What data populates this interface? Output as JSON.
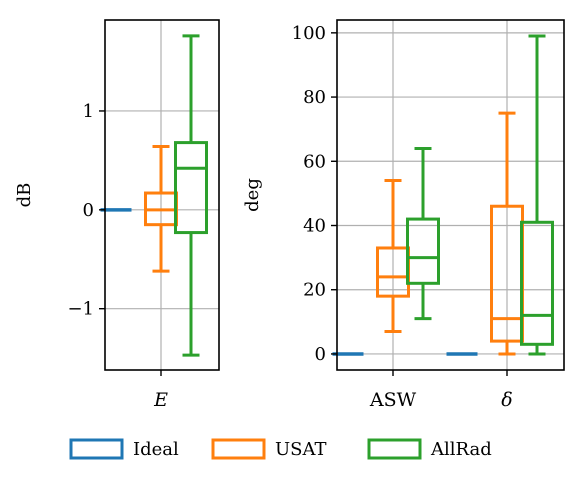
{
  "chart_data": [
    {
      "type": "box",
      "ylabel": "dB",
      "ylim": [
        -1.62,
        1.92
      ],
      "yticks": [
        -1,
        0,
        1
      ],
      "ytick_labels": [
        "−1",
        "0",
        "1"
      ],
      "categories": [
        "E"
      ],
      "category_labels": [
        "E"
      ],
      "grid": true,
      "series": [
        {
          "name": "Ideal",
          "boxes": [
            {
              "whislo": 0.0,
              "q1": 0.0,
              "med": 0.0,
              "q3": 0.0,
              "whishi": 0.0
            }
          ]
        },
        {
          "name": "USAT",
          "boxes": [
            {
              "whislo": -0.62,
              "q1": -0.15,
              "med": 0.0,
              "q3": 0.17,
              "whishi": 0.64
            }
          ]
        },
        {
          "name": "AllRad",
          "boxes": [
            {
              "whislo": -1.47,
              "q1": -0.23,
              "med": 0.42,
              "q3": 0.68,
              "whishi": 1.76
            }
          ]
        }
      ]
    },
    {
      "type": "box",
      "ylabel": "deg",
      "ylim": [
        -5,
        104
      ],
      "yticks": [
        0,
        20,
        40,
        60,
        80,
        100
      ],
      "ytick_labels": [
        "0",
        "20",
        "40",
        "60",
        "80",
        "100"
      ],
      "categories": [
        "ASW",
        "delta"
      ],
      "category_labels": [
        "ASW",
        "δ"
      ],
      "grid": true,
      "series": [
        {
          "name": "Ideal",
          "boxes": [
            {
              "whislo": 0,
              "q1": 0,
              "med": 0,
              "q3": 0,
              "whishi": 0
            },
            {
              "whislo": 0,
              "q1": 0,
              "med": 0,
              "q3": 0,
              "whishi": 0
            }
          ]
        },
        {
          "name": "USAT",
          "boxes": [
            {
              "whislo": 7,
              "q1": 18,
              "med": 24,
              "q3": 33,
              "whishi": 54
            },
            {
              "whislo": 0,
              "q1": 4,
              "med": 11,
              "q3": 46,
              "whishi": 75
            }
          ]
        },
        {
          "name": "AllRad",
          "boxes": [
            {
              "whislo": 11,
              "q1": 22,
              "med": 30,
              "q3": 42,
              "whishi": 64
            },
            {
              "whislo": 0,
              "q1": 3,
              "med": 12,
              "q3": 41,
              "whishi": 99
            }
          ]
        }
      ]
    }
  ],
  "legend": {
    "placement": "bottom-center",
    "items": [
      {
        "label": "Ideal",
        "color": "#1f77b4"
      },
      {
        "label": "USAT",
        "color": "#ff7f0e"
      },
      {
        "label": "AllRad",
        "color": "#2ca02c"
      }
    ]
  },
  "colors": {
    "Ideal": "#1f77b4",
    "USAT": "#ff7f0e",
    "AllRad": "#2ca02c",
    "grid": "#b0b0b0"
  }
}
